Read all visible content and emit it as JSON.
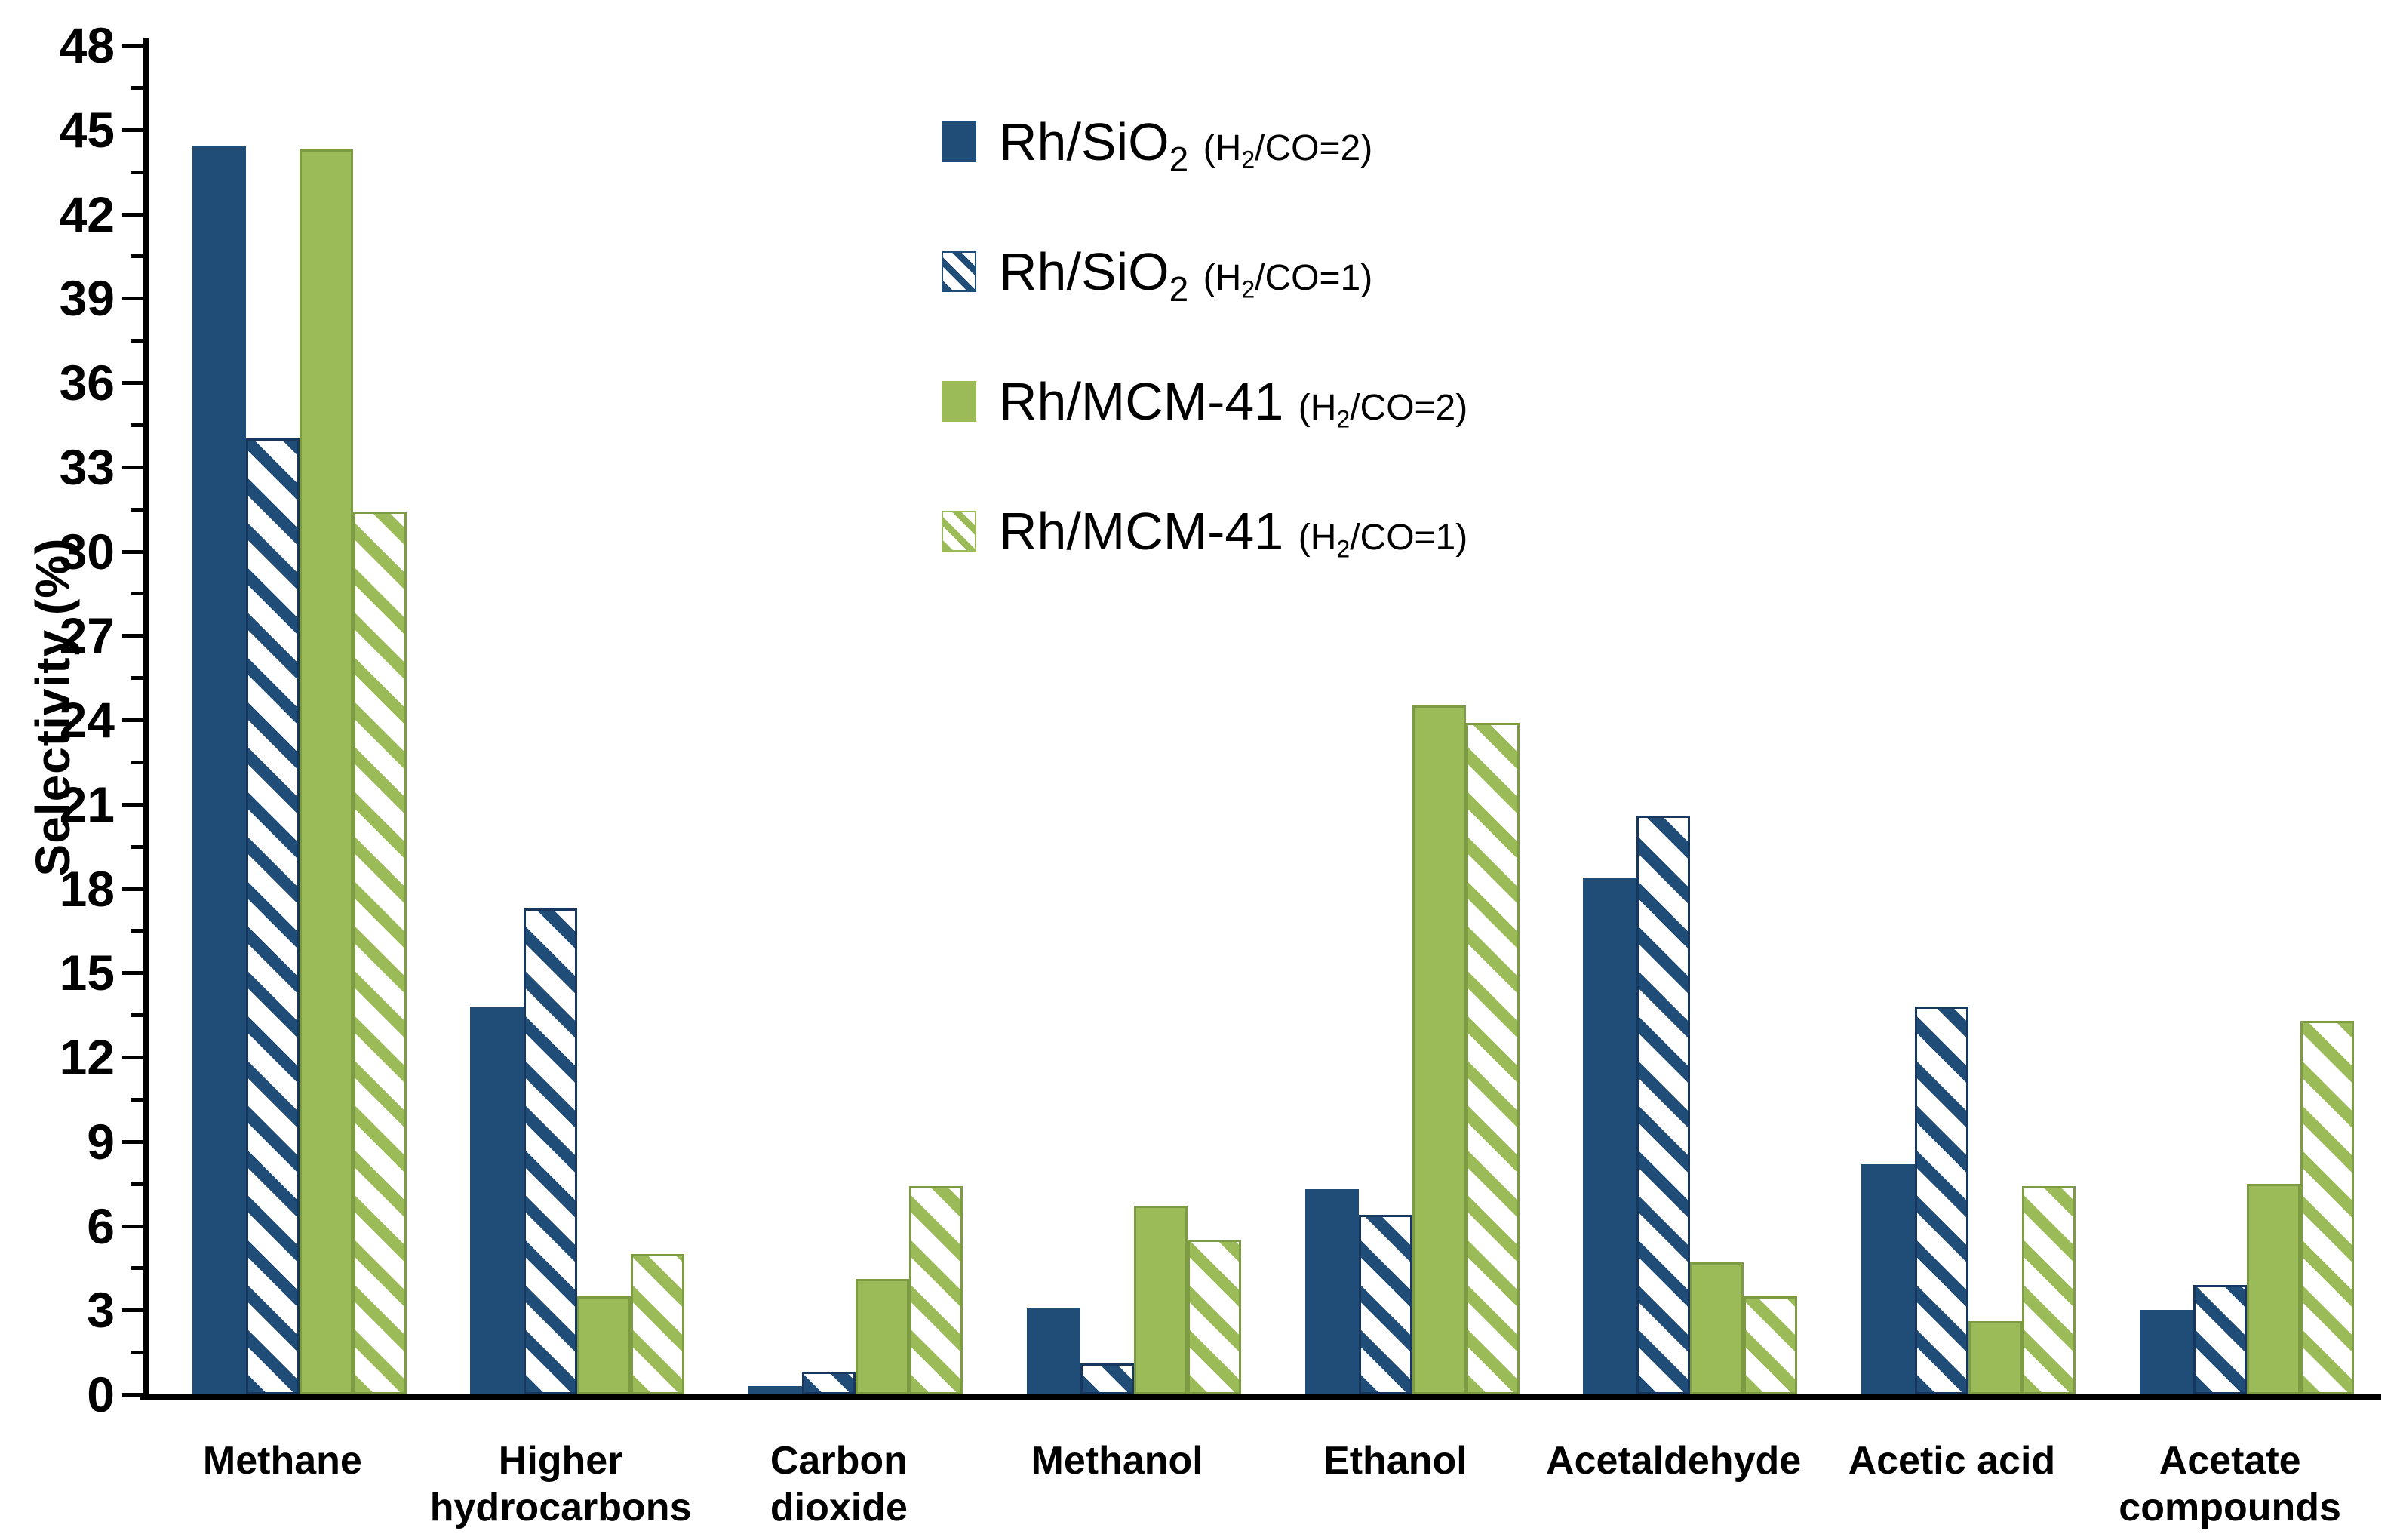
{
  "colors": {
    "blue": "#204C78",
    "blue_border": "#17375E",
    "green": "#9BBB59",
    "green_border": "#7C9B42",
    "axis": "#000000",
    "background": "#FFFFFF"
  },
  "chart_data": {
    "type": "bar",
    "title": "",
    "xlabel": "",
    "ylabel": "Selectivity (%)",
    "ylim": [
      0,
      48
    ],
    "ytick_step": 3,
    "yminor_step": 1.5,
    "grid": false,
    "legend_position": "upper center-right, vertical",
    "ytick_labels": [
      "0",
      "3",
      "6",
      "9",
      "12",
      "15",
      "18",
      "21",
      "24",
      "27",
      "30",
      "33",
      "36",
      "39",
      "42",
      "45",
      "48"
    ],
    "categories": [
      "Methane",
      "Higher hydrocarbons",
      "Carbon dioxide",
      "Methanol",
      "Ethanol",
      "Acetaldehyde",
      "Acetic acid",
      "Acetate compounds"
    ],
    "category_label_lines": [
      [
        "Methane"
      ],
      [
        "Higher",
        "hydrocarbons"
      ],
      [
        "Carbon",
        "dioxide"
      ],
      [
        "Methanol"
      ],
      [
        "Ethanol"
      ],
      [
        "Acetaldehyde"
      ],
      [
        "Acetic acid"
      ],
      [
        "Acetate",
        "compounds"
      ]
    ],
    "series": [
      {
        "name": "Rh/SiO2 (H2/CO=2)",
        "color_key": "blue",
        "pattern": "solid",
        "values": [
          44.4,
          13.8,
          0.3,
          3.1,
          7.3,
          18.4,
          8.2,
          3.0
        ]
      },
      {
        "name": "Rh/SiO2 (H2/CO=1)",
        "color_key": "blue",
        "pattern": "hatch",
        "values": [
          34.0,
          17.3,
          0.8,
          1.1,
          6.4,
          20.6,
          13.8,
          3.9
        ]
      },
      {
        "name": "Rh/MCM-41 (H2/CO=2)",
        "color_key": "green",
        "pattern": "solid",
        "values": [
          44.3,
          3.5,
          4.1,
          6.7,
          24.5,
          4.7,
          2.6,
          7.5
        ]
      },
      {
        "name": "Rh/MCM-41 (H2/CO=1)",
        "color_key": "green",
        "pattern": "hatch",
        "values": [
          31.4,
          5.0,
          7.4,
          5.5,
          23.9,
          3.5,
          7.4,
          13.3
        ]
      }
    ],
    "legend": [
      {
        "catalyst": "Rh/SiO",
        "catalyst_sub": "2",
        "ratio_pre": "(H",
        "ratio_sub": "2",
        "ratio_post": "/CO=2)"
      },
      {
        "catalyst": "Rh/SiO",
        "catalyst_sub": "2",
        "ratio_pre": "(H",
        "ratio_sub": "2",
        "ratio_post": "/CO=1)"
      },
      {
        "catalyst": "Rh/MCM-41",
        "catalyst_sub": "",
        "ratio_pre": "(H",
        "ratio_sub": "2",
        "ratio_post": "/CO=2)"
      },
      {
        "catalyst": "Rh/MCM-41",
        "catalyst_sub": "",
        "ratio_pre": "(H",
        "ratio_sub": "2",
        "ratio_post": "/CO=1)"
      }
    ]
  }
}
